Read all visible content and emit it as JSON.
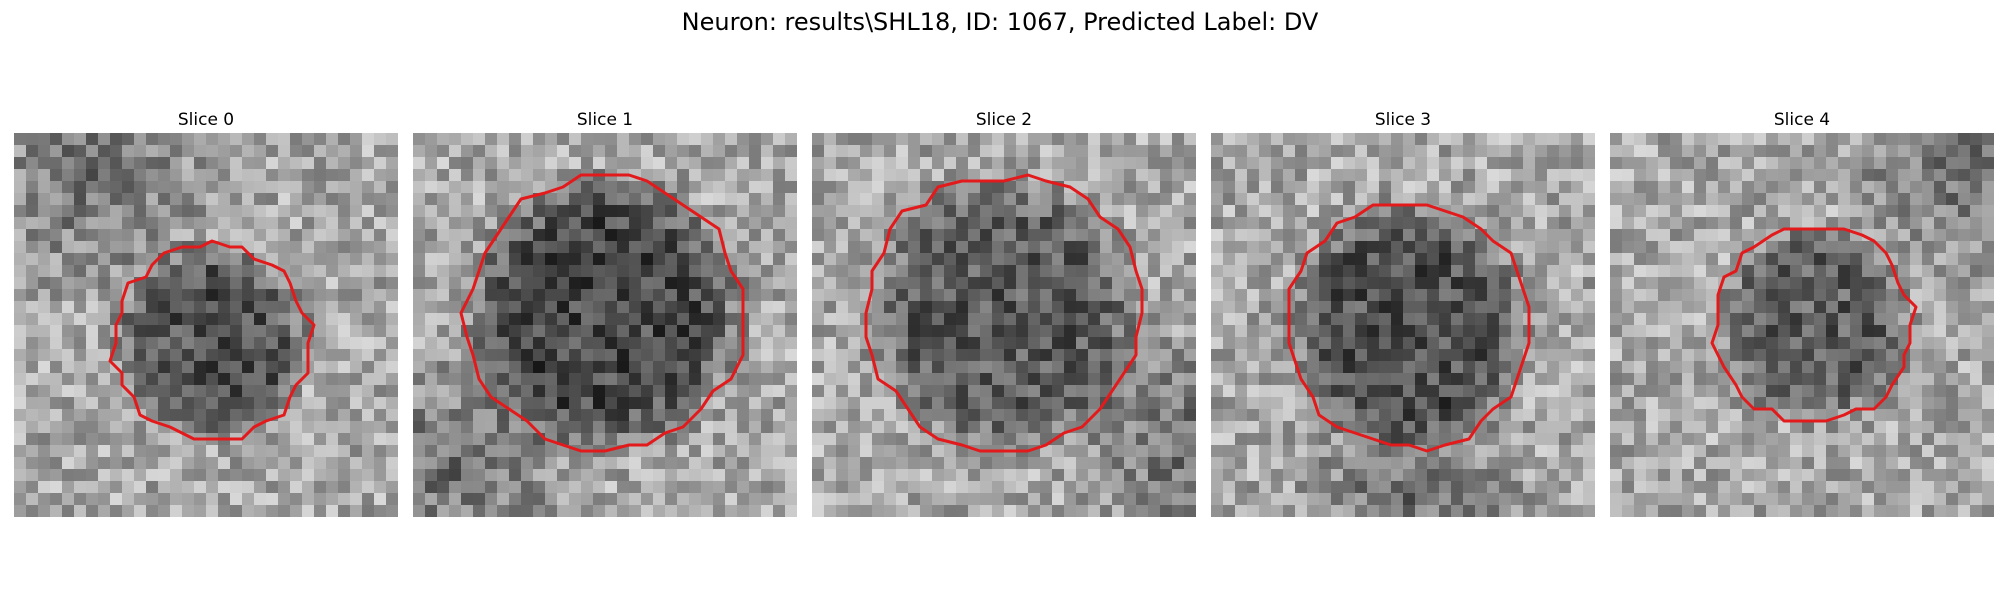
{
  "figure": {
    "title": "Neuron: results\\SHL18, ID: 1067, Predicted Label: DV"
  },
  "colors": {
    "contour": "#e31a1c",
    "background": "#ffffff"
  },
  "slices": [
    {
      "title": "Slice 0"
    },
    {
      "title": "Slice 1"
    },
    {
      "title": "Slice 2"
    },
    {
      "title": "Slice 3"
    },
    {
      "title": "Slice 4"
    }
  ]
}
